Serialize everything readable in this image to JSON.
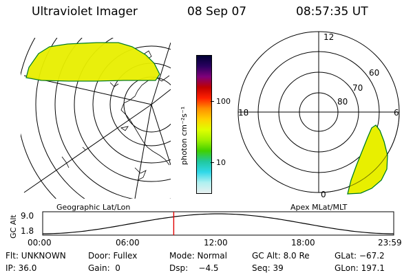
{
  "header": {
    "instrument": "Ultraviolet Imager",
    "date": "08 Sep 07",
    "time": "08:57:35 UT"
  },
  "left_panel": {
    "caption": "Geographic Lat/Lon",
    "fill_color": "#e8ef00",
    "edge_color": "#00b030"
  },
  "colorbar": {
    "units_label": "photon cm⁻²s⁻¹",
    "tick_labels": [
      "100",
      "10"
    ],
    "colors": [
      "#000033",
      "#2a0060",
      "#80007a",
      "#c00000",
      "#ff2000",
      "#ff9000",
      "#ffd000",
      "#e0ff00",
      "#a0f000",
      "#40d000",
      "#20c8a0",
      "#30d8e8",
      "#b0f0f0",
      "#e8f0f0"
    ]
  },
  "right_panel": {
    "caption": "Apex MLat/MLT",
    "mlt_labels": [
      "12",
      "18",
      "6",
      "0"
    ],
    "mlat_labels": [
      "60",
      "70",
      "80"
    ]
  },
  "timeline": {
    "axis_label": "GC Alt",
    "y_labels": [
      "9.0",
      "1.8"
    ],
    "x_labels": [
      "00:00",
      "06:00",
      "12:00",
      "18:00",
      "23:59"
    ],
    "current_hour": 8.96,
    "marker_color": "#e00000"
  },
  "info": {
    "flt": "Flt: UNKNOWN",
    "door": "Door: Fullex",
    "mode": "Mode: Normal",
    "gcalt": "GC Alt: 8.0 Re",
    "glat": "GLat: −67.2",
    "ip": "IP: 36.0",
    "gain": "Gain:  0",
    "dsp": "Dsp:    −4.5",
    "seq": "Seq: 39",
    "glon": "GLon: 197.1"
  }
}
